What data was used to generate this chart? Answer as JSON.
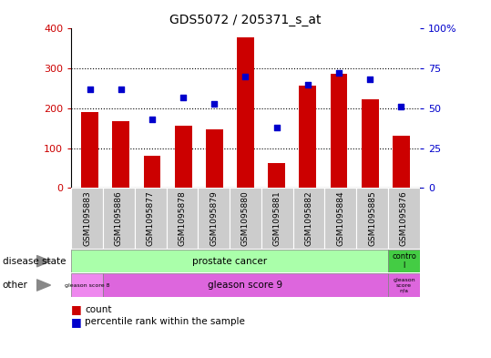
{
  "title": "GDS5072 / 205371_s_at",
  "samples": [
    "GSM1095883",
    "GSM1095886",
    "GSM1095877",
    "GSM1095878",
    "GSM1095879",
    "GSM1095880",
    "GSM1095881",
    "GSM1095882",
    "GSM1095884",
    "GSM1095885",
    "GSM1095876"
  ],
  "counts": [
    190,
    168,
    80,
    157,
    147,
    378,
    63,
    258,
    287,
    222,
    130
  ],
  "percentile_ranks": [
    62,
    62,
    43,
    57,
    53,
    70,
    38,
    65,
    72,
    68,
    51
  ],
  "bar_color": "#cc0000",
  "dot_color": "#0000cc",
  "ylim_left": [
    0,
    400
  ],
  "ylim_right": [
    0,
    100
  ],
  "yticks_left": [
    0,
    100,
    200,
    300,
    400
  ],
  "yticks_right": [
    0,
    25,
    50,
    75,
    100
  ],
  "ytick_labels_right": [
    "0",
    "25",
    "50",
    "75",
    "100%"
  ],
  "disease_state_color_main": "#aaffaa",
  "disease_state_color_ctrl": "#44cc44",
  "other_color_gs8": "#ee88ee",
  "other_color_gs9": "#dd66dd",
  "other_color_gsna": "#dd66dd",
  "tick_bg_color": "#cccccc",
  "legend_count_color": "#cc0000",
  "legend_dot_color": "#0000cc",
  "tick_label_color_left": "#cc0000",
  "tick_label_color_right": "#0000cc"
}
